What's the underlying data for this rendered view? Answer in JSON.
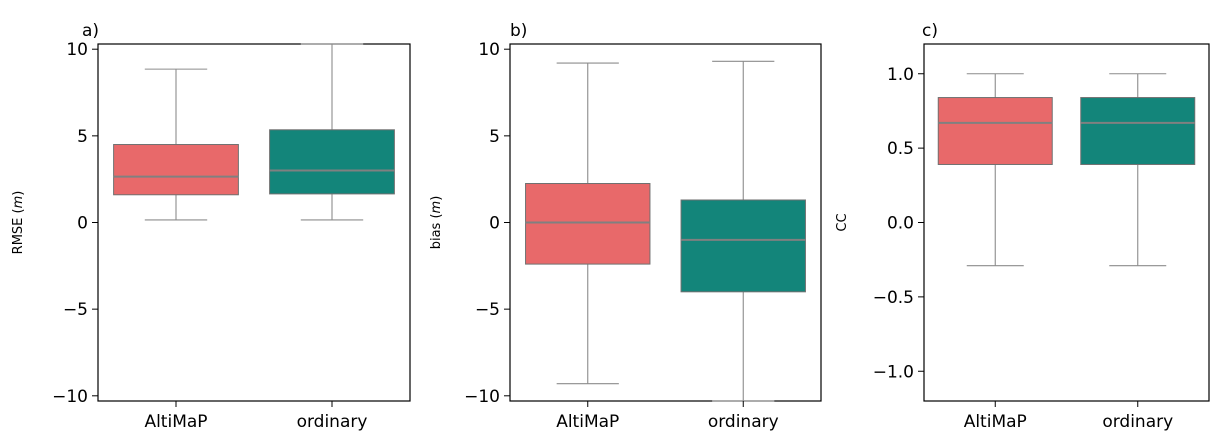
{
  "chart_data": [
    {
      "type": "box",
      "panel_label": "a)",
      "ylabel": "RMSE (m)",
      "ylabel_main": "RMSE",
      "ylabel_unit": "m",
      "ylim": [
        -10.3,
        10.3
      ],
      "yticks": [
        -10,
        -5,
        0,
        5,
        10
      ],
      "ytick_labels": [
        "−10",
        "−5",
        "0",
        "5",
        "10"
      ],
      "categories": [
        "AltiMaP",
        "ordinary"
      ],
      "colors": [
        "#e8696a",
        "#13857a"
      ],
      "median_color": "#808080",
      "boxes": [
        {
          "name": "AltiMaP",
          "whislo": 0.15,
          "q1": 1.6,
          "med": 2.65,
          "q3": 4.5,
          "whishi": 8.85
        },
        {
          "name": "ordinary",
          "whislo": 0.15,
          "q1": 1.65,
          "med": 3.0,
          "q3": 5.35,
          "whishi": 10.3
        }
      ]
    },
    {
      "type": "box",
      "panel_label": "b)",
      "ylabel": "bias (m)",
      "ylabel_main": "bias",
      "ylabel_unit": "m",
      "ylim": [
        -10.3,
        10.3
      ],
      "yticks": [
        -10,
        -5,
        0,
        5,
        10
      ],
      "ytick_labels": [
        "−10",
        "−5",
        "0",
        "5",
        "10"
      ],
      "categories": [
        "AltiMaP",
        "ordinary"
      ],
      "colors": [
        "#e8696a",
        "#13857a"
      ],
      "median_color": "#808080",
      "boxes": [
        {
          "name": "AltiMaP",
          "whislo": -9.3,
          "q1": -2.4,
          "med": 0.0,
          "q3": 2.25,
          "whishi": 9.2
        },
        {
          "name": "ordinary",
          "whislo": -10.3,
          "q1": -4.0,
          "med": -1.0,
          "q3": 1.3,
          "whishi": 9.3
        }
      ]
    },
    {
      "type": "box",
      "panel_label": "c)",
      "ylabel": "CC",
      "ylabel_main": "CC",
      "ylabel_unit": "",
      "ylim": [
        -1.2,
        1.2
      ],
      "yticks": [
        -1.0,
        -0.5,
        0.0,
        0.5,
        1.0
      ],
      "ytick_labels": [
        "−1.0",
        "−0.5",
        "0.0",
        "0.5",
        "1.0"
      ],
      "categories": [
        "AltiMaP",
        "ordinary"
      ],
      "colors": [
        "#e8696a",
        "#13857a"
      ],
      "median_color": "#808080",
      "boxes": [
        {
          "name": "AltiMaP",
          "whislo": -0.29,
          "q1": 0.39,
          "med": 0.67,
          "q3": 0.84,
          "whishi": 1.0
        },
        {
          "name": "ordinary",
          "whislo": -0.29,
          "q1": 0.39,
          "med": 0.67,
          "q3": 0.84,
          "whishi": 1.0
        }
      ]
    }
  ]
}
